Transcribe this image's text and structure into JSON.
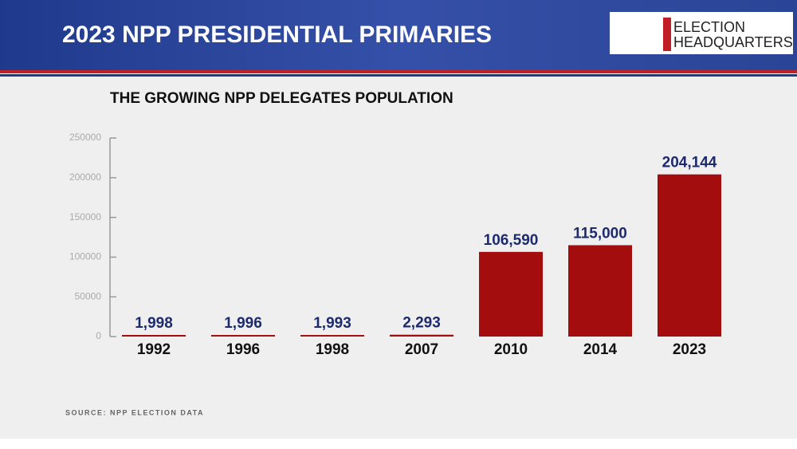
{
  "header": {
    "title": "2023 NPP PRESIDENTIAL PRIMARIES",
    "logo": [
      "ELECTION",
      "HEADQUARTERS"
    ]
  },
  "chart_data": {
    "type": "bar",
    "title": "THE GROWING NPP DELEGATES POPULATION",
    "categories": [
      "1992",
      "1996",
      "1998",
      "2007",
      "2010",
      "2014",
      "2023"
    ],
    "values": [
      1998,
      1996,
      1993,
      2293,
      106590,
      115000,
      204144
    ],
    "value_labels": [
      "1,998",
      "1,996",
      "1,993",
      "2,293",
      "106,590",
      "115,000",
      "204,144"
    ],
    "color": "#a30d0d",
    "label_color": "#1d2a6e",
    "ylim": [
      0,
      250000
    ],
    "yticks": [
      0,
      50000,
      100000,
      150000,
      200000,
      250000
    ],
    "grid": false,
    "source": "SOURCE: NPP ELECTION DATA"
  }
}
